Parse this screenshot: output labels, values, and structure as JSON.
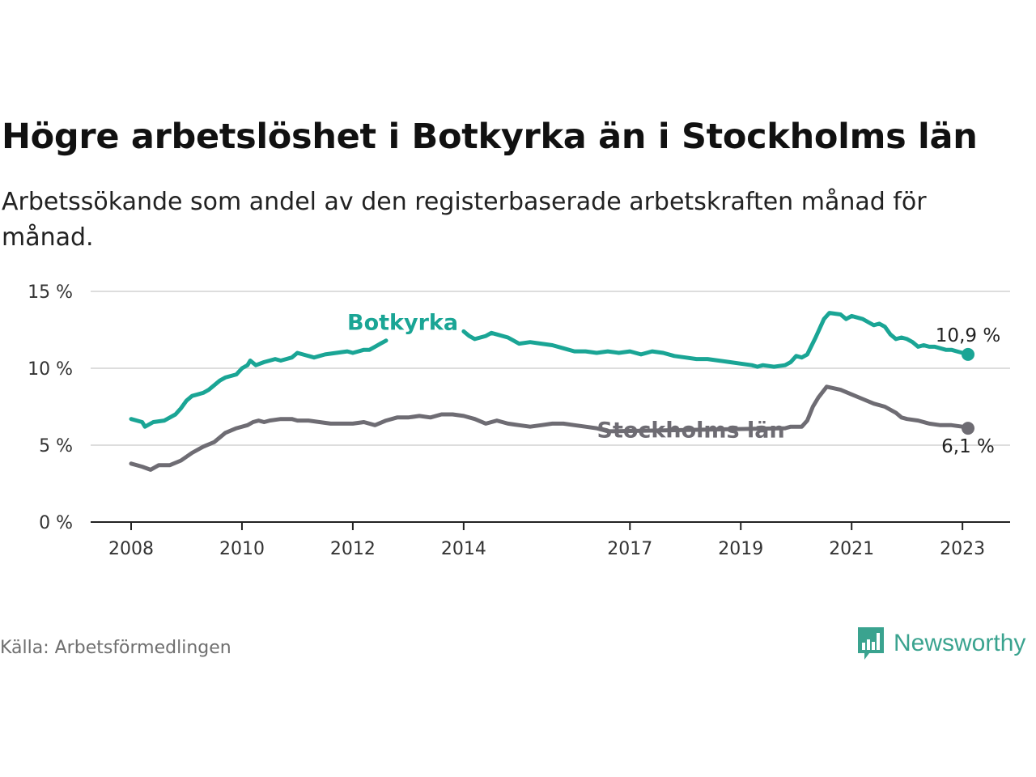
{
  "header": {
    "title": "Högre arbetslöshet i Botkyrka än i Stockholms län",
    "subtitle": "Arbetssökande som andel av den registerbaserade arbetskraften månad för månad."
  },
  "footer": {
    "source": "Källa: Arbetsförmedlingen",
    "brand": "Newsworthy",
    "brand_icon": "bar-chart-speech-bubble-icon",
    "brand_color": "#3aa38f"
  },
  "chart_data": {
    "type": "line",
    "title": "Högre arbetslöshet i Botkyrka än i Stockholms län",
    "ylabel": "",
    "xlabel": "",
    "ylim": [
      0,
      15
    ],
    "y_ticks": [
      0,
      5,
      10,
      15
    ],
    "y_tick_labels": [
      "0 %",
      "5 %",
      "10 %",
      "15 %"
    ],
    "x_range": [
      2008.0,
      2023.1
    ],
    "x_ticks": [
      2008,
      2010,
      2012,
      2014,
      2017,
      2019,
      2021,
      2023
    ],
    "x_tick_labels": [
      "2008",
      "2010",
      "2012",
      "2014",
      "2017",
      "2019",
      "2021",
      "2023"
    ],
    "grid": true,
    "series": [
      {
        "name": "Botkyrka",
        "color": "#1aa595",
        "end_label": "10,9 %",
        "x": [
          2008.0,
          2008.2,
          2008.25,
          2008.4,
          2008.6,
          2008.7,
          2008.8,
          2008.9,
          2009.0,
          2009.1,
          2009.2,
          2009.3,
          2009.4,
          2009.5,
          2009.6,
          2009.7,
          2009.8,
          2009.9,
          2010.0,
          2010.1,
          2010.15,
          2010.25,
          2010.4,
          2010.5,
          2010.6,
          2010.7,
          2010.8,
          2010.9,
          2011.0,
          2011.3,
          2011.5,
          2011.7,
          2011.9,
          2012.0,
          2012.1,
          2012.2,
          2012.3,
          2012.4,
          2012.5,
          2012.6,
          2012.7,
          2014.0,
          2014.1,
          2014.2,
          2014.4,
          2014.5,
          2014.6,
          2014.8,
          2015.0,
          2015.2,
          2015.4,
          2015.6,
          2015.8,
          2016.0,
          2016.2,
          2016.4,
          2016.6,
          2016.8,
          2017.0,
          2017.2,
          2017.4,
          2017.6,
          2017.8,
          2018.0,
          2018.2,
          2018.4,
          2018.6,
          2018.8,
          2019.0,
          2019.2,
          2019.3,
          2019.4,
          2019.6,
          2019.8,
          2019.9,
          2020.0,
          2020.1,
          2020.2,
          2020.35,
          2020.5,
          2020.6,
          2020.8,
          2020.9,
          2021.0,
          2021.2,
          2021.3,
          2021.4,
          2021.5,
          2021.6,
          2021.7,
          2021.8,
          2021.9,
          2022.0,
          2022.1,
          2022.2,
          2022.3,
          2022.4,
          2022.5,
          2022.6,
          2022.7,
          2022.8,
          2022.9,
          2023.0,
          2023.1
        ],
        "y": [
          6.7,
          6.5,
          6.2,
          6.5,
          6.6,
          6.8,
          7.0,
          7.4,
          7.9,
          8.2,
          8.3,
          8.4,
          8.6,
          8.9,
          9.2,
          9.4,
          9.5,
          9.6,
          10.0,
          10.2,
          10.5,
          10.2,
          10.4,
          10.5,
          10.6,
          10.5,
          10.6,
          10.7,
          11.0,
          10.7,
          10.9,
          11.0,
          11.1,
          11.0,
          11.1,
          11.2,
          11.2,
          11.4,
          11.6,
          11.8,
          null,
          12.4,
          12.1,
          11.9,
          12.1,
          12.3,
          12.2,
          12.0,
          11.6,
          11.7,
          11.6,
          11.5,
          11.3,
          11.1,
          11.1,
          11.0,
          11.1,
          11.0,
          11.1,
          10.9,
          11.1,
          11.0,
          10.8,
          10.7,
          10.6,
          10.6,
          10.5,
          10.4,
          10.3,
          10.2,
          10.1,
          10.2,
          10.1,
          10.2,
          10.4,
          10.8,
          10.7,
          10.9,
          12.0,
          13.2,
          13.6,
          13.5,
          13.2,
          13.4,
          13.2,
          13.0,
          12.8,
          12.9,
          12.7,
          12.2,
          11.9,
          12.0,
          11.9,
          11.7,
          11.4,
          11.5,
          11.4,
          11.4,
          11.3,
          11.2,
          11.2,
          11.1,
          11.0,
          10.9
        ]
      },
      {
        "name": "Stockholms län",
        "color": "#6e6c73",
        "end_label": "6,1 %",
        "x": [
          2008.0,
          2008.2,
          2008.35,
          2008.5,
          2008.7,
          2008.9,
          2009.1,
          2009.3,
          2009.5,
          2009.7,
          2009.9,
          2010.1,
          2010.2,
          2010.3,
          2010.4,
          2010.5,
          2010.7,
          2010.9,
          2011.0,
          2011.2,
          2011.4,
          2011.6,
          2011.8,
          2012.0,
          2012.2,
          2012.4,
          2012.6,
          2012.8,
          2013.0,
          2013.2,
          2013.4,
          2013.6,
          2013.8,
          2014.0,
          2014.2,
          2014.4,
          2014.6,
          2014.8,
          2015.0,
          2015.2,
          2015.4,
          2015.6,
          2015.8,
          2016.0,
          2016.2,
          2016.4,
          2016.6,
          2019.8,
          2019.9,
          2020.0,
          2020.1,
          2020.2,
          2020.3,
          2020.4,
          2020.55,
          2020.8,
          2021.0,
          2021.2,
          2021.4,
          2021.6,
          2021.8,
          2021.9,
          2022.0,
          2022.2,
          2022.4,
          2022.6,
          2022.8,
          2023.0,
          2023.1
        ],
        "y": [
          3.8,
          3.6,
          3.4,
          3.7,
          3.7,
          4.0,
          4.5,
          4.9,
          5.2,
          5.8,
          6.1,
          6.3,
          6.5,
          6.6,
          6.5,
          6.6,
          6.7,
          6.7,
          6.6,
          6.6,
          6.5,
          6.4,
          6.4,
          6.4,
          6.5,
          6.3,
          6.6,
          6.8,
          6.8,
          6.9,
          6.8,
          7.0,
          7.0,
          6.9,
          6.7,
          6.4,
          6.6,
          6.4,
          6.3,
          6.2,
          6.3,
          6.4,
          6.4,
          6.3,
          6.2,
          6.1,
          5.9,
          6.1,
          6.2,
          6.2,
          6.2,
          6.6,
          7.5,
          8.1,
          8.8,
          8.6,
          8.3,
          8.0,
          7.7,
          7.5,
          7.1,
          6.8,
          6.7,
          6.6,
          6.4,
          6.3,
          6.3,
          6.2,
          6.1
        ]
      }
    ]
  }
}
